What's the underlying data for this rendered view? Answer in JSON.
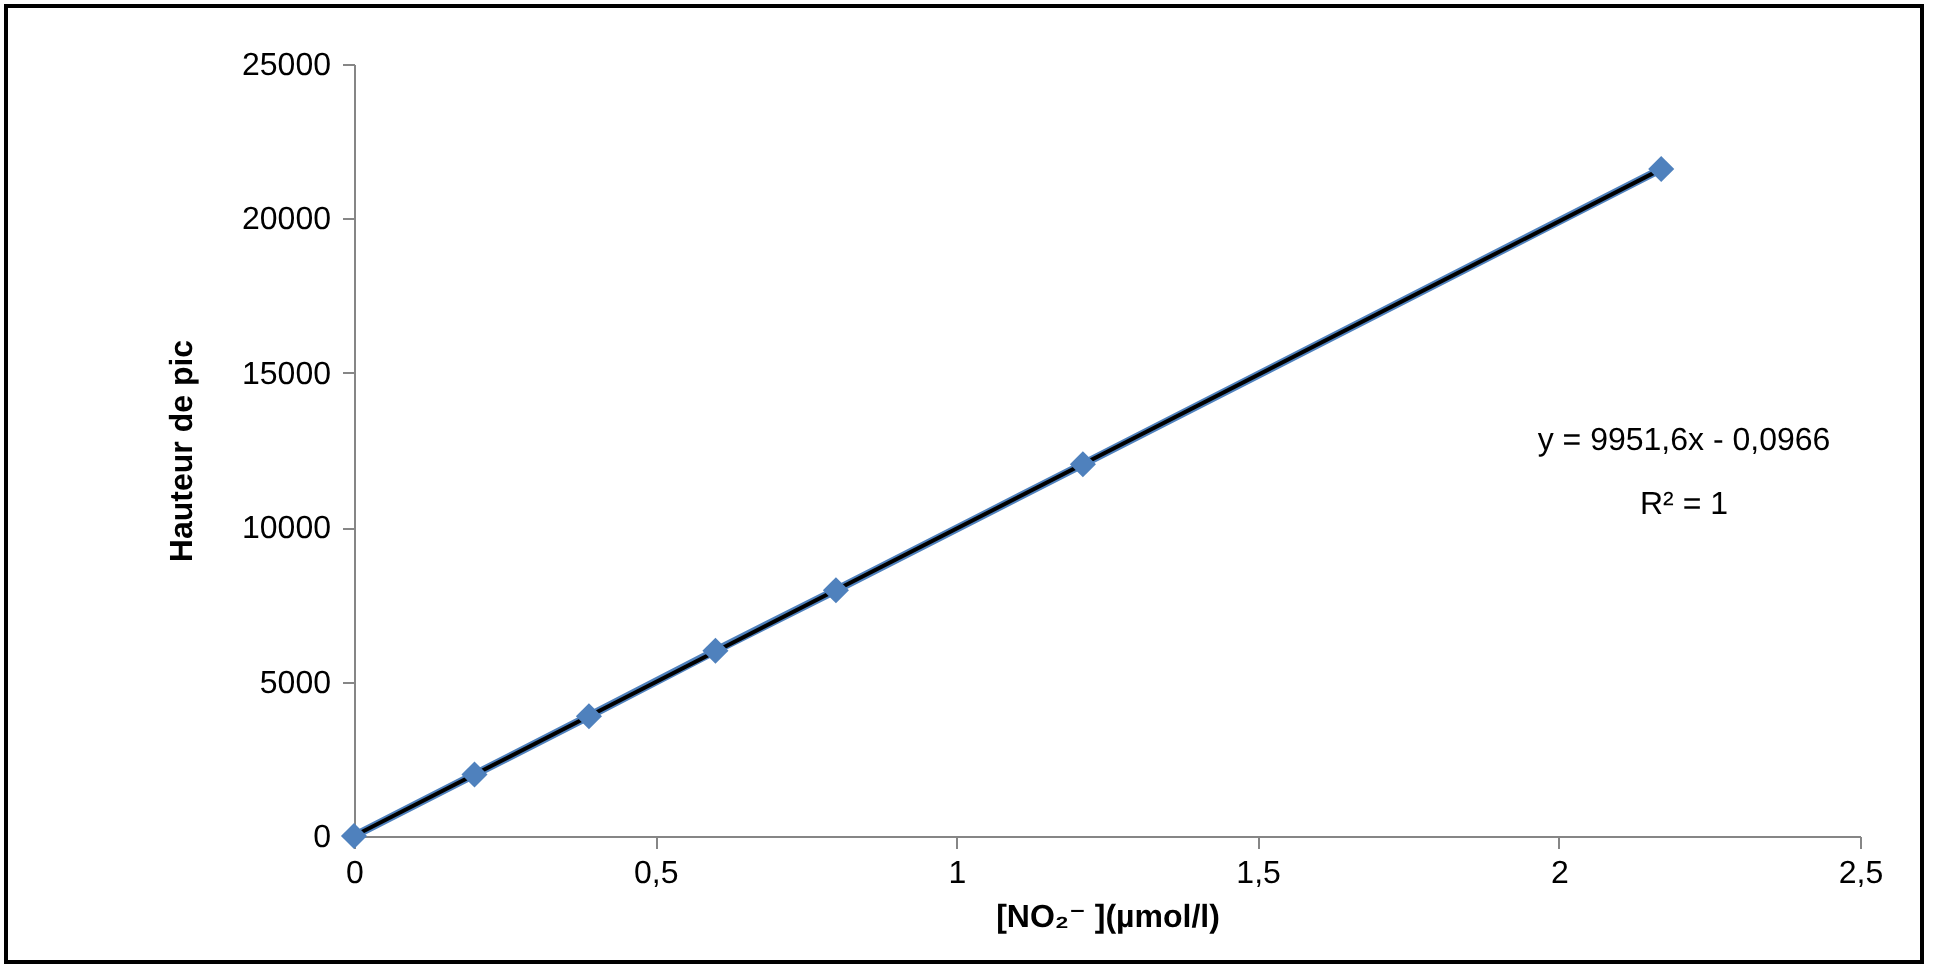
{
  "chart_data": {
    "type": "line",
    "xlabel": "[NO₂⁻ ](µmol/l)",
    "ylabel": "Hauteur de pic",
    "x": [
      0,
      0.2,
      0.39,
      0.6,
      0.8,
      1.21,
      2.17
    ],
    "series": [
      {
        "color": "#4f81bd",
        "marker": "diamond",
        "values": [
          0,
          1990,
          3880,
          6000,
          7960,
          12040,
          21600
        ]
      },
      {
        "type": "line",
        "color": "#000000",
        "marker": "none",
        "x": [
          0,
          2.17
        ],
        "values": [
          0,
          21595
        ]
      }
    ],
    "grid": false,
    "xlim": [
      0,
      2.5
    ],
    "xticks": [
      0,
      {
        "value": 0.5,
        "label": "0,5"
      },
      1,
      {
        "value": 1.5,
        "label": "1,5"
      },
      2,
      {
        "value": 2.5,
        "label": "2,5"
      }
    ],
    "ylim": [
      0,
      25000
    ],
    "yticks": [
      0,
      5000,
      10000,
      15000,
      20000,
      25000
    ],
    "annotations": [
      "y = 9951,6x - 0,0966",
      "R² = 1"
    ]
  }
}
